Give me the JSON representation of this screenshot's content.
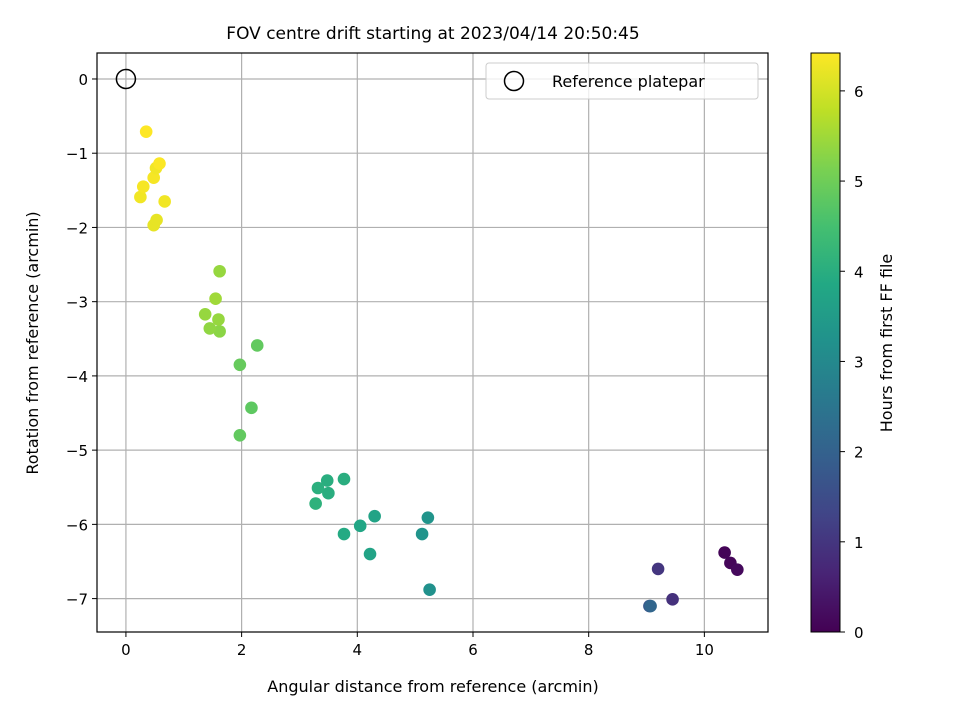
{
  "chart_data": {
    "type": "scatter",
    "title": "FOV centre drift starting at 2023/04/14 20:50:45",
    "xlabel": "Angular distance from reference (arcmin)",
    "ylabel": "Rotation from reference (arcmin)",
    "xlim": [
      -0.5,
      11.1
    ],
    "ylim": [
      -7.45,
      0.35
    ],
    "xticks": [
      0,
      2,
      4,
      6,
      8,
      10
    ],
    "yticks": [
      0,
      -1,
      -2,
      -3,
      -4,
      -5,
      -6,
      -7
    ],
    "ytick_labels": [
      "0",
      "−1",
      "−2",
      "−3",
      "−4",
      "−5",
      "−6",
      "−7"
    ],
    "grid": true,
    "legend": {
      "position": "top-right",
      "entries": [
        {
          "label": "Reference platepar",
          "marker": "open-circle"
        }
      ]
    },
    "reference_point": {
      "x": 0,
      "y": 0
    },
    "colorbar": {
      "label": "Hours from first FF file",
      "min": 0,
      "max": 6.42,
      "ticks": [
        0,
        1,
        2,
        3,
        4,
        5,
        6
      ],
      "colormap": "viridis"
    },
    "points": [
      {
        "x": 10.35,
        "y": -6.38,
        "h": 0.05
      },
      {
        "x": 10.45,
        "y": -6.52,
        "h": 0.1
      },
      {
        "x": 10.57,
        "y": -6.61,
        "h": 0.15
      },
      {
        "x": 9.45,
        "y": -7.01,
        "h": 0.9
      },
      {
        "x": 9.2,
        "y": -6.6,
        "h": 1.0
      },
      {
        "x": 9.05,
        "y": -7.1,
        "h": 1.7
      },
      {
        "x": 9.07,
        "y": -7.1,
        "h": 2.1
      },
      {
        "x": 5.25,
        "y": -6.88,
        "h": 3.2
      },
      {
        "x": 5.12,
        "y": -6.13,
        "h": 3.3
      },
      {
        "x": 5.22,
        "y": -5.91,
        "h": 3.3
      },
      {
        "x": 4.3,
        "y": -5.89,
        "h": 3.7
      },
      {
        "x": 4.22,
        "y": -6.4,
        "h": 3.7
      },
      {
        "x": 4.05,
        "y": -6.02,
        "h": 3.8
      },
      {
        "x": 3.77,
        "y": -6.13,
        "h": 3.9
      },
      {
        "x": 3.77,
        "y": -5.39,
        "h": 4.0
      },
      {
        "x": 3.48,
        "y": -5.41,
        "h": 4.0
      },
      {
        "x": 3.5,
        "y": -5.58,
        "h": 4.0
      },
      {
        "x": 3.32,
        "y": -5.51,
        "h": 4.05
      },
      {
        "x": 3.28,
        "y": -5.72,
        "h": 4.1
      },
      {
        "x": 1.97,
        "y": -4.8,
        "h": 4.85
      },
      {
        "x": 2.17,
        "y": -4.43,
        "h": 4.8
      },
      {
        "x": 1.97,
        "y": -3.85,
        "h": 4.9
      },
      {
        "x": 2.27,
        "y": -3.59,
        "h": 4.85
      },
      {
        "x": 1.62,
        "y": -3.4,
        "h": 5.3
      },
      {
        "x": 1.6,
        "y": -3.24,
        "h": 5.4
      },
      {
        "x": 1.45,
        "y": -3.36,
        "h": 5.35
      },
      {
        "x": 1.37,
        "y": -3.17,
        "h": 5.4
      },
      {
        "x": 1.55,
        "y": -2.96,
        "h": 5.5
      },
      {
        "x": 1.62,
        "y": -2.59,
        "h": 5.4
      },
      {
        "x": 0.48,
        "y": -1.97,
        "h": 6.2
      },
      {
        "x": 0.53,
        "y": -1.9,
        "h": 6.2
      },
      {
        "x": 0.67,
        "y": -1.65,
        "h": 6.3
      },
      {
        "x": 0.25,
        "y": -1.59,
        "h": 6.3
      },
      {
        "x": 0.3,
        "y": -1.45,
        "h": 6.35
      },
      {
        "x": 0.48,
        "y": -1.33,
        "h": 6.35
      },
      {
        "x": 0.52,
        "y": -1.2,
        "h": 6.3
      },
      {
        "x": 0.58,
        "y": -1.14,
        "h": 6.4
      },
      {
        "x": 0.35,
        "y": -0.71,
        "h": 6.42
      }
    ]
  }
}
